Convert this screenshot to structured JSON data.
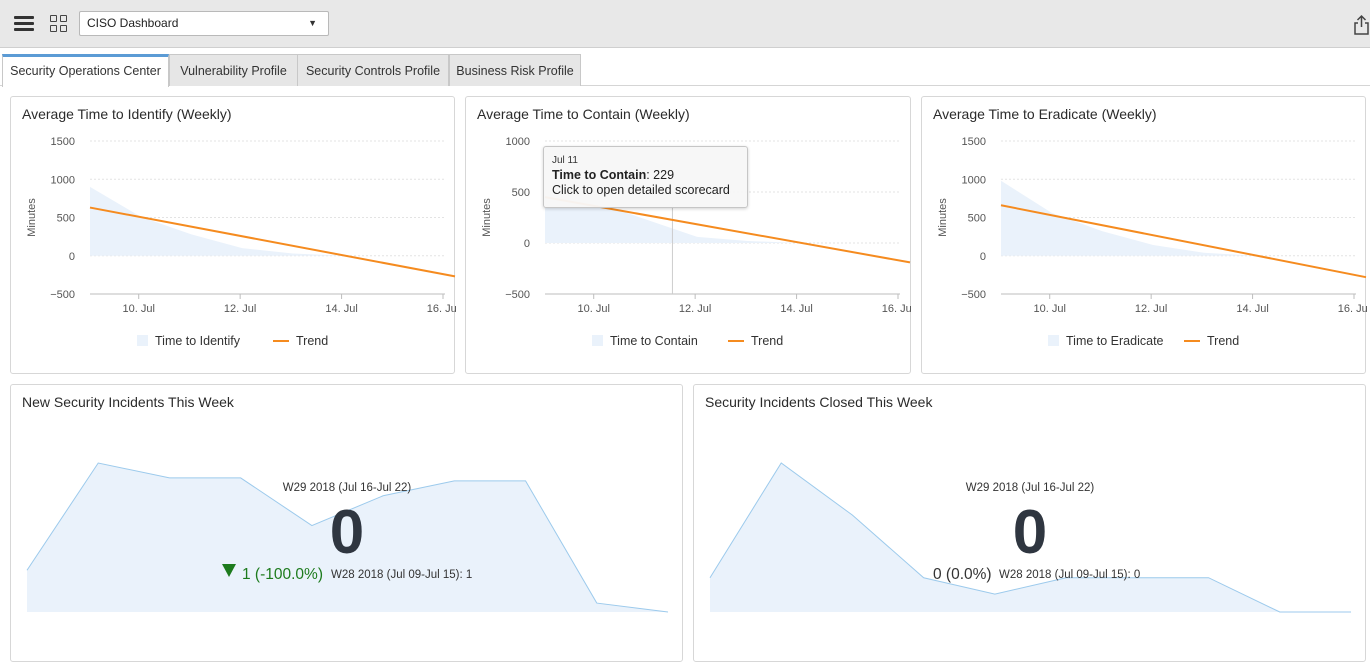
{
  "topbar": {
    "dashboard_select": "CISO Dashboard",
    "icons": {
      "menu": "hamburger-icon",
      "layout": "grid-icon",
      "share": "share-icon",
      "caret": "caret-down-icon"
    }
  },
  "tabs": [
    {
      "label": "Security Operations Center",
      "active": true
    },
    {
      "label": "Vulnerability Profile",
      "active": false
    },
    {
      "label": "Security Controls Profile",
      "active": false
    },
    {
      "label": "Business Risk Profile",
      "active": false
    }
  ],
  "colors": {
    "area_fill": "#eaf2fb",
    "area_line": "#9ccaec",
    "trend": "#f58b1f",
    "down": "#1d7b1d",
    "accent": "#5b9bd5"
  },
  "tooltip": {
    "date": "Jul 11",
    "label": "Time to Contain",
    "value": ": 229",
    "hint": "Click to open detailed scorecard"
  },
  "kpi": {
    "new": {
      "title": "New Security Incidents This Week",
      "period": "W29 2018 (Jul 16-Jul 22)",
      "value": "0",
      "delta": "1 (-100.0%)",
      "compare": "W28 2018 (Jul 09-Jul 15): 1"
    },
    "closed": {
      "title": "Security Incidents Closed This Week",
      "period": "W29 2018 (Jul 16-Jul 22)",
      "value": "0",
      "delta": "0 (0.0%)",
      "compare": "W28 2018 (Jul 09-Jul 15): 0"
    }
  },
  "chart_data": [
    {
      "type": "area",
      "title": "Average Time to Identify (Weekly)",
      "ylabel": "Minutes",
      "ylim": [
        -500,
        1500
      ],
      "yticks": [
        "1500",
        "1000",
        "500",
        "0",
        "−500"
      ],
      "x_ticks": [
        "10. Jul",
        "12. Jul",
        "14. Jul",
        "16. Jul"
      ],
      "grid": true,
      "legend_position": "bottom-center",
      "series": [
        {
          "name": "Time to Identify",
          "kind": "area",
          "x": [
            "Jul 9",
            "Jul 10",
            "Jul 11",
            "Jul 12",
            "Jul 13",
            "Jul 14",
            "Jul 15",
            "Jul 16"
          ],
          "values": [
            900,
            510,
            280,
            100,
            30,
            0,
            0,
            0
          ]
        },
        {
          "name": "Trend",
          "kind": "line",
          "x": [
            "Jul 9",
            "Jul 16"
          ],
          "values": [
            630,
            -270
          ]
        }
      ]
    },
    {
      "type": "area",
      "title": "Average Time to Contain (Weekly)",
      "ylabel": "Minutes",
      "ylim": [
        -500,
        1000
      ],
      "yticks": [
        "1000",
        "500",
        "0",
        "−500"
      ],
      "x_ticks": [
        "10. Jul",
        "12. Jul",
        "14. Jul",
        "16. Jul"
      ],
      "grid": true,
      "legend_position": "bottom-center",
      "series": [
        {
          "name": "Time to Contain",
          "kind": "area",
          "x": [
            "Jul 9",
            "Jul 10",
            "Jul 11",
            "Jul 12",
            "Jul 13",
            "Jul 14",
            "Jul 15",
            "Jul 16"
          ],
          "values": [
            560,
            400,
            229,
            60,
            20,
            0,
            0,
            0
          ]
        },
        {
          "name": "Trend",
          "kind": "line",
          "x": [
            "Jul 9",
            "Jul 16"
          ],
          "values": [
            450,
            -190
          ]
        }
      ]
    },
    {
      "type": "area",
      "title": "Average Time to Eradicate (Weekly)",
      "ylabel": "Minutes",
      "ylim": [
        -500,
        1500
      ],
      "yticks": [
        "1500",
        "1000",
        "500",
        "0",
        "−500"
      ],
      "x_ticks": [
        "10. Jul",
        "12. Jul",
        "14. Jul",
        "16. Jul"
      ],
      "grid": true,
      "legend_position": "bottom-center",
      "series": [
        {
          "name": "Time to Eradicate",
          "kind": "area",
          "x": [
            "Jul 9",
            "Jul 10",
            "Jul 11",
            "Jul 12",
            "Jul 13",
            "Jul 14",
            "Jul 15",
            "Jul 16"
          ],
          "values": [
            980,
            560,
            320,
            140,
            40,
            0,
            0,
            0
          ]
        },
        {
          "name": "Trend",
          "kind": "line",
          "x": [
            "Jul 9",
            "Jul 16"
          ],
          "values": [
            660,
            -280
          ]
        }
      ]
    },
    {
      "type": "area",
      "title": "New Security Incidents This Week",
      "ylim": [
        0,
        1
      ],
      "grid": false,
      "series": [
        {
          "values": [
            0.28,
            1.0,
            0.9,
            0.9,
            0.58,
            0.78,
            0.88,
            0.88,
            0.06,
            0.0
          ]
        }
      ]
    },
    {
      "type": "area",
      "title": "Security Incidents Closed This Week",
      "ylim": [
        0,
        1
      ],
      "grid": false,
      "series": [
        {
          "values": [
            0.23,
            1.0,
            0.65,
            0.23,
            0.12,
            0.23,
            0.23,
            0.23,
            0.0,
            0.0
          ]
        }
      ]
    }
  ]
}
